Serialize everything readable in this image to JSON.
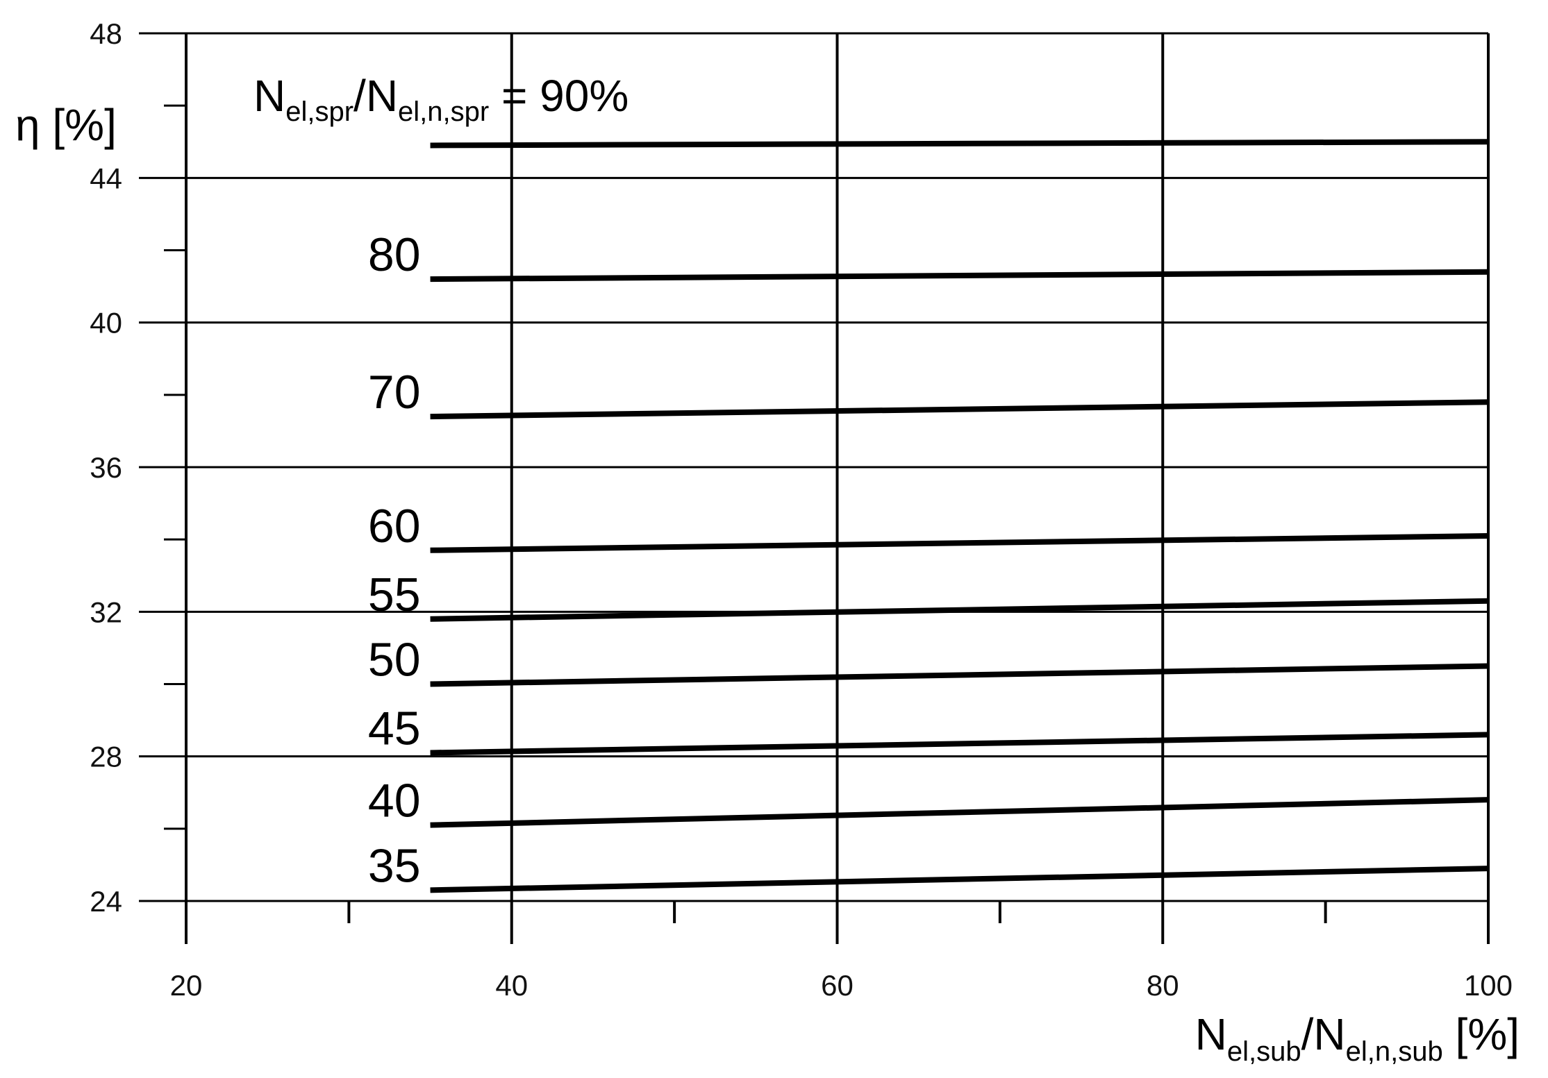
{
  "chart_data": {
    "type": "line",
    "title": "",
    "xlabel": {
      "main": "N",
      "sub1": "el,sub",
      "slash": "/N",
      "sub2": "el,n,sub",
      "unit": " [%]"
    },
    "ylabel": "η [%]",
    "xlim": [
      20,
      100
    ],
    "ylim": [
      24,
      48
    ],
    "x_ticks": [
      20,
      40,
      60,
      80,
      100
    ],
    "y_ticks": [
      24,
      28,
      32,
      36,
      40,
      44,
      48
    ],
    "grid": true,
    "series_header": {
      "main": "N",
      "sub1": "el,spr",
      "slash": "/N",
      "sub2": "el,n,spr",
      "rest": " = 90%"
    },
    "series": [
      {
        "name": "90",
        "x": [
          35,
          100
        ],
        "y": [
          44.9,
          45.0
        ]
      },
      {
        "name": "80",
        "x": [
          35,
          100
        ],
        "y": [
          41.2,
          41.4
        ]
      },
      {
        "name": "70",
        "x": [
          35,
          100
        ],
        "y": [
          37.4,
          37.8
        ]
      },
      {
        "name": "60",
        "x": [
          35,
          100
        ],
        "y": [
          33.7,
          34.1
        ]
      },
      {
        "name": "55",
        "x": [
          35,
          100
        ],
        "y": [
          31.8,
          32.3
        ]
      },
      {
        "name": "50",
        "x": [
          35,
          100
        ],
        "y": [
          30.0,
          30.5
        ]
      },
      {
        "name": "45",
        "x": [
          35,
          100
        ],
        "y": [
          28.1,
          28.6
        ]
      },
      {
        "name": "40",
        "x": [
          35,
          100
        ],
        "y": [
          26.1,
          26.8
        ]
      },
      {
        "name": "35",
        "x": [
          35,
          100
        ],
        "y": [
          24.3,
          24.9
        ]
      }
    ]
  }
}
